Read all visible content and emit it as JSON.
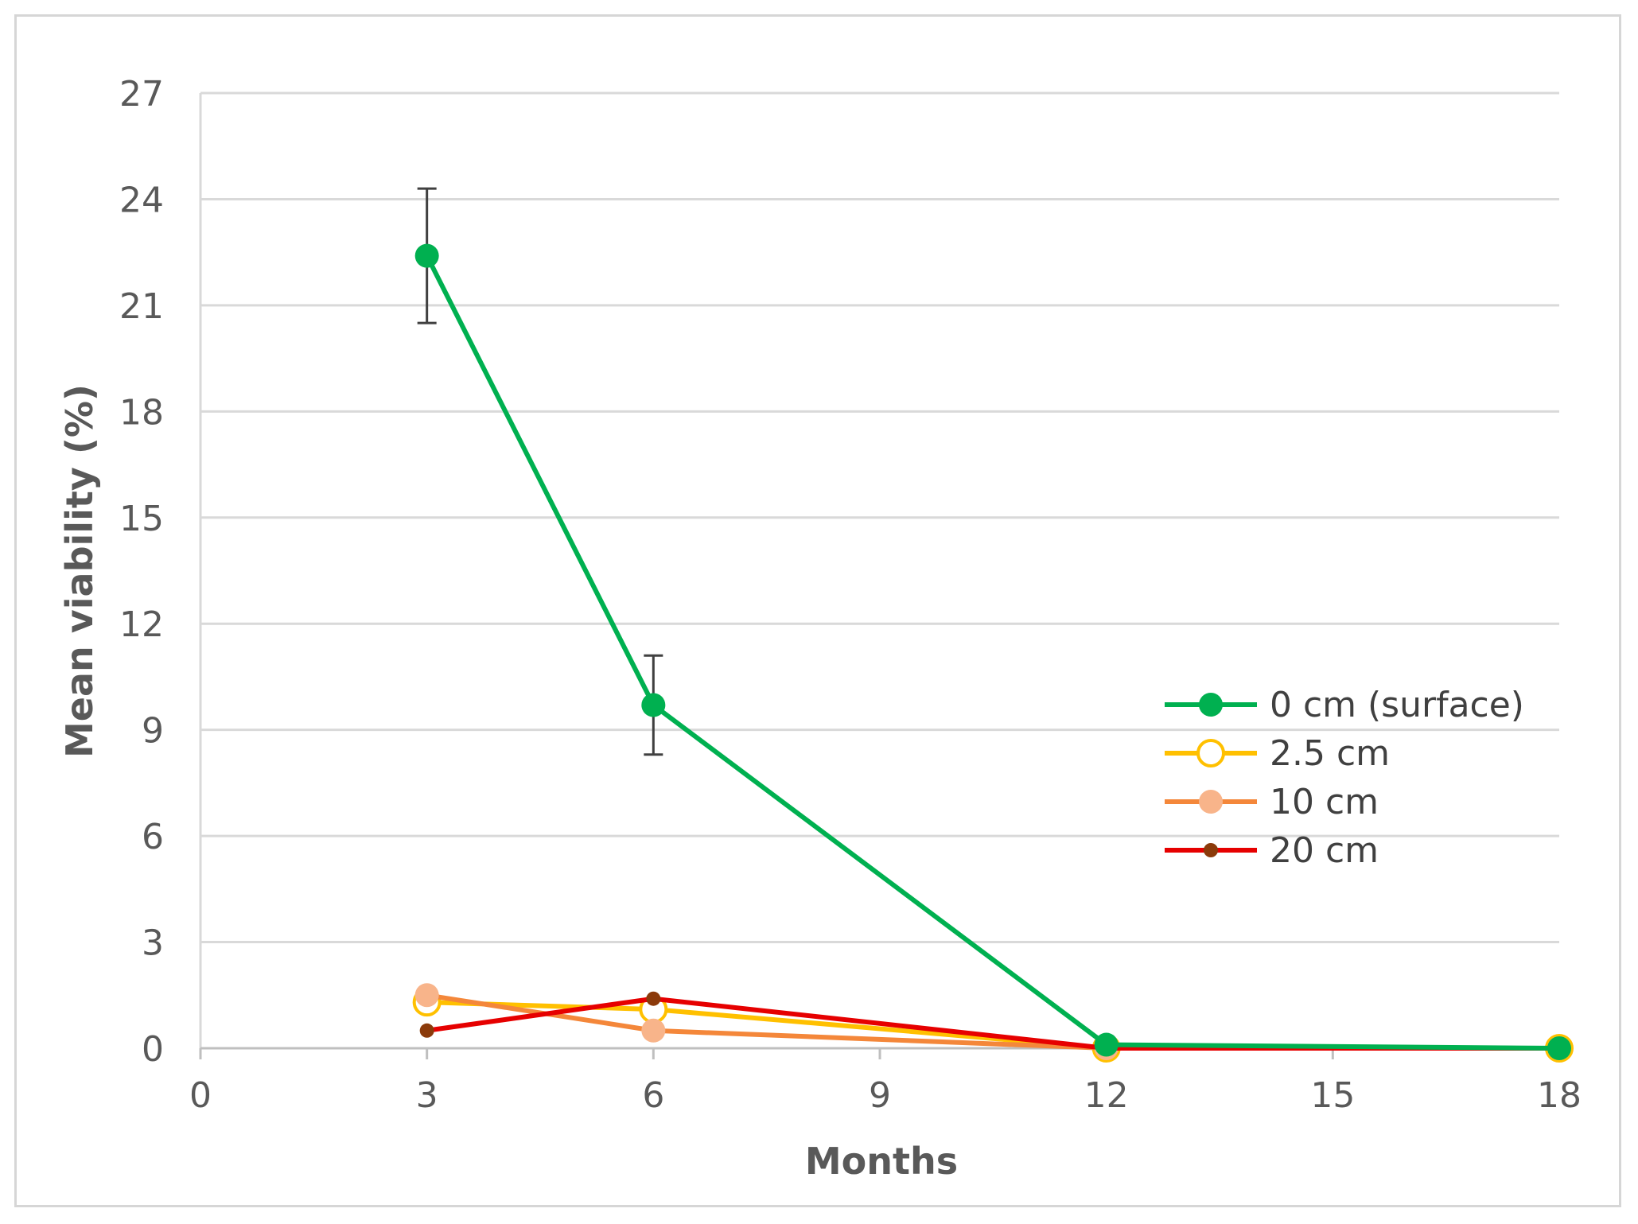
{
  "chart_data": {
    "type": "line",
    "title": "",
    "xlabel": "Months",
    "ylabel": "Mean viability (%)",
    "xlim": [
      0,
      18
    ],
    "ylim": [
      0,
      27
    ],
    "x_ticks": [
      0,
      3,
      6,
      9,
      12,
      15,
      18
    ],
    "y_ticks": [
      0,
      3,
      6,
      9,
      12,
      15,
      18,
      21,
      24,
      27
    ],
    "grid": "horizontal",
    "legend_position": "right",
    "series": [
      {
        "name": "0 cm (surface)",
        "color": "#00b050",
        "marker": "filled-circle",
        "x": [
          3,
          6,
          12,
          18
        ],
        "y": [
          22.4,
          9.7,
          0.1,
          0
        ],
        "error": [
          1.9,
          1.4,
          0,
          0
        ]
      },
      {
        "name": "2.5 cm",
        "color": "#ffc000",
        "marker": "hollow-circle",
        "x": [
          3,
          6,
          12,
          18
        ],
        "y": [
          1.3,
          1.1,
          0,
          0
        ]
      },
      {
        "name": "10 cm",
        "color": "#f4873a",
        "marker": "filled-circle-light",
        "marker_color": "#f8b48a",
        "x": [
          3,
          6,
          12,
          18
        ],
        "y": [
          1.5,
          0.5,
          0,
          0
        ]
      },
      {
        "name": "20 cm",
        "color": "#e60000",
        "marker": "small-dot",
        "marker_color": "#8b3a0a",
        "x": [
          3,
          6,
          12,
          18
        ],
        "y": [
          0.5,
          1.4,
          0,
          0
        ]
      }
    ]
  }
}
